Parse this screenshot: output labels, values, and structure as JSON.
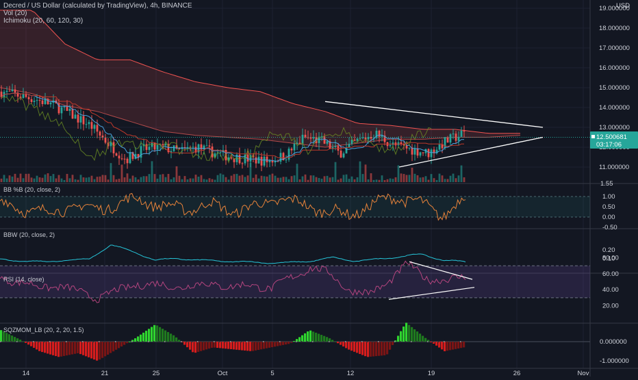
{
  "header": {
    "title": "Decred / US Dollar (calculated by TradingView), 4h, BINANCE",
    "vol": "Vol (20)",
    "ichimoku": "Ichimoku (20, 60, 120, 30)"
  },
  "price_axis": {
    "currency": "USD",
    "ticks": [
      "19.000000",
      "18.000000",
      "17.000000",
      "16.000000",
      "15.000000",
      "14.000000",
      "13.000000",
      "11.000000"
    ],
    "extra_tick": "12.000000",
    "last_price": "12.500681",
    "countdown": "03:17:06",
    "bottom_tick": "1.55"
  },
  "panes": {
    "bb": {
      "label": "BB %B (20, close, 2)",
      "ticks": [
        "1.00",
        "0.50",
        "0.00",
        "-0.50"
      ]
    },
    "bbw": {
      "label": "BBW (20, close, 2)",
      "ticks": [
        "0.20",
        "0.10"
      ]
    },
    "rsi": {
      "label": "RSI (14, close)",
      "ticks": [
        "80.00",
        "60.00",
        "40.00",
        "20.00"
      ]
    },
    "sqz": {
      "label": "SQZMOM_LB (20, 2, 20, 1.5)",
      "ticks": [
        "0.000000",
        "-1.000000"
      ]
    }
  },
  "time_axis": [
    "14",
    "21",
    "25",
    "Oct",
    "5",
    "12",
    "19",
    "26",
    "Nov"
  ],
  "colors": {
    "background": "#131722",
    "up": "#26a69a",
    "down": "#ef5350",
    "bb_line": "#e8833a",
    "bbw_line": "#26c6da",
    "rsi_line": "#b5457f",
    "rsi_band": "#3b1f4a",
    "sqz_green": "#2fd52f",
    "sqz_red": "#d61d1d",
    "trendline": "#ffffff"
  },
  "chart_data": {
    "type": "candlestick",
    "price": [
      14.8,
      14.6,
      14.4,
      14.1,
      13.6,
      13.1,
      12.2,
      11.4,
      11.9,
      12.0,
      11.8,
      12.0,
      11.7,
      11.5,
      11.4,
      11.3,
      11.6,
      12.5,
      12.3,
      11.7,
      12.3,
      12.7,
      12.1,
      11.9,
      11.7,
      12.3,
      12.7
    ],
    "rsi": [
      55,
      50,
      43,
      45,
      38,
      30,
      38,
      47,
      46,
      44,
      45,
      48,
      43,
      46,
      42,
      55,
      68,
      60,
      40,
      34,
      50,
      72,
      55,
      50,
      58
    ],
    "triangle_price": {
      "upper": [
        14.3,
        13.0
      ],
      "lower": [
        11.0,
        12.5
      ]
    },
    "triangle_rsi": {
      "upper": [
        75,
        53
      ],
      "lower": [
        28,
        43
      ]
    }
  }
}
